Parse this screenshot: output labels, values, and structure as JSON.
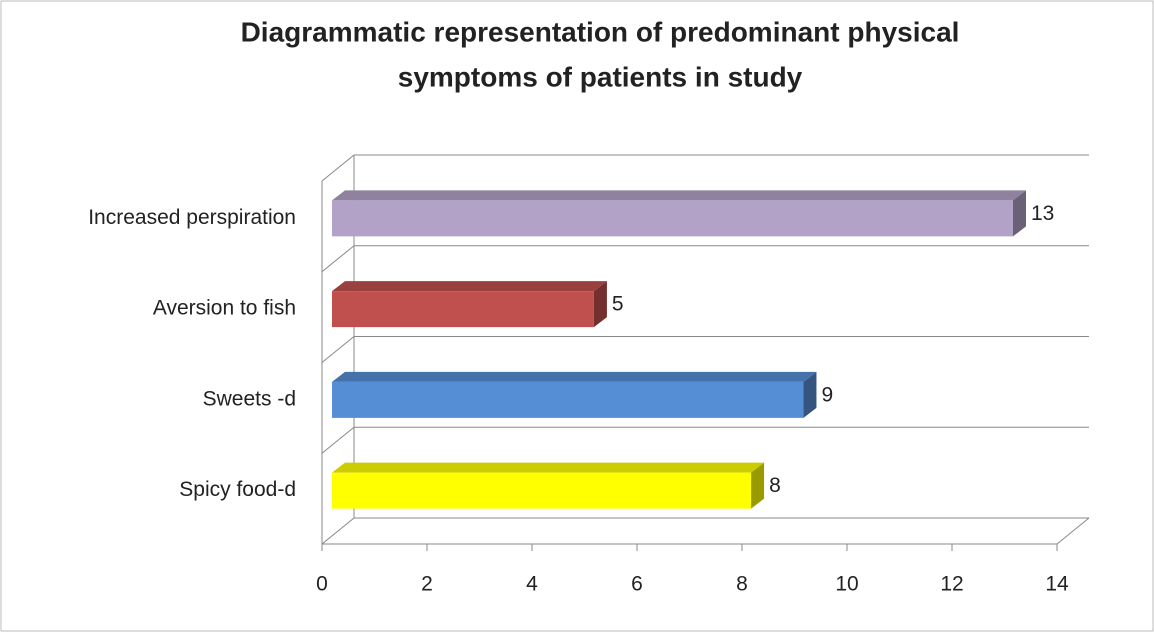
{
  "chart_data": {
    "type": "bar",
    "orientation": "horizontal",
    "title": [
      "Diagrammatic representation of predominant physical",
      "symptoms of patients in  study"
    ],
    "categories": [
      "Increased perspiration",
      "Aversion to fish",
      "Sweets -d",
      "Spicy food-d"
    ],
    "values": [
      13,
      5,
      9,
      8
    ],
    "colors": [
      "#b3a2c7",
      "#c0504d",
      "#558ed5",
      "#ffff00"
    ],
    "xlim": [
      0,
      14
    ],
    "xticks": [
      0,
      2,
      4,
      6,
      8,
      10,
      12,
      14
    ],
    "grid": true
  }
}
